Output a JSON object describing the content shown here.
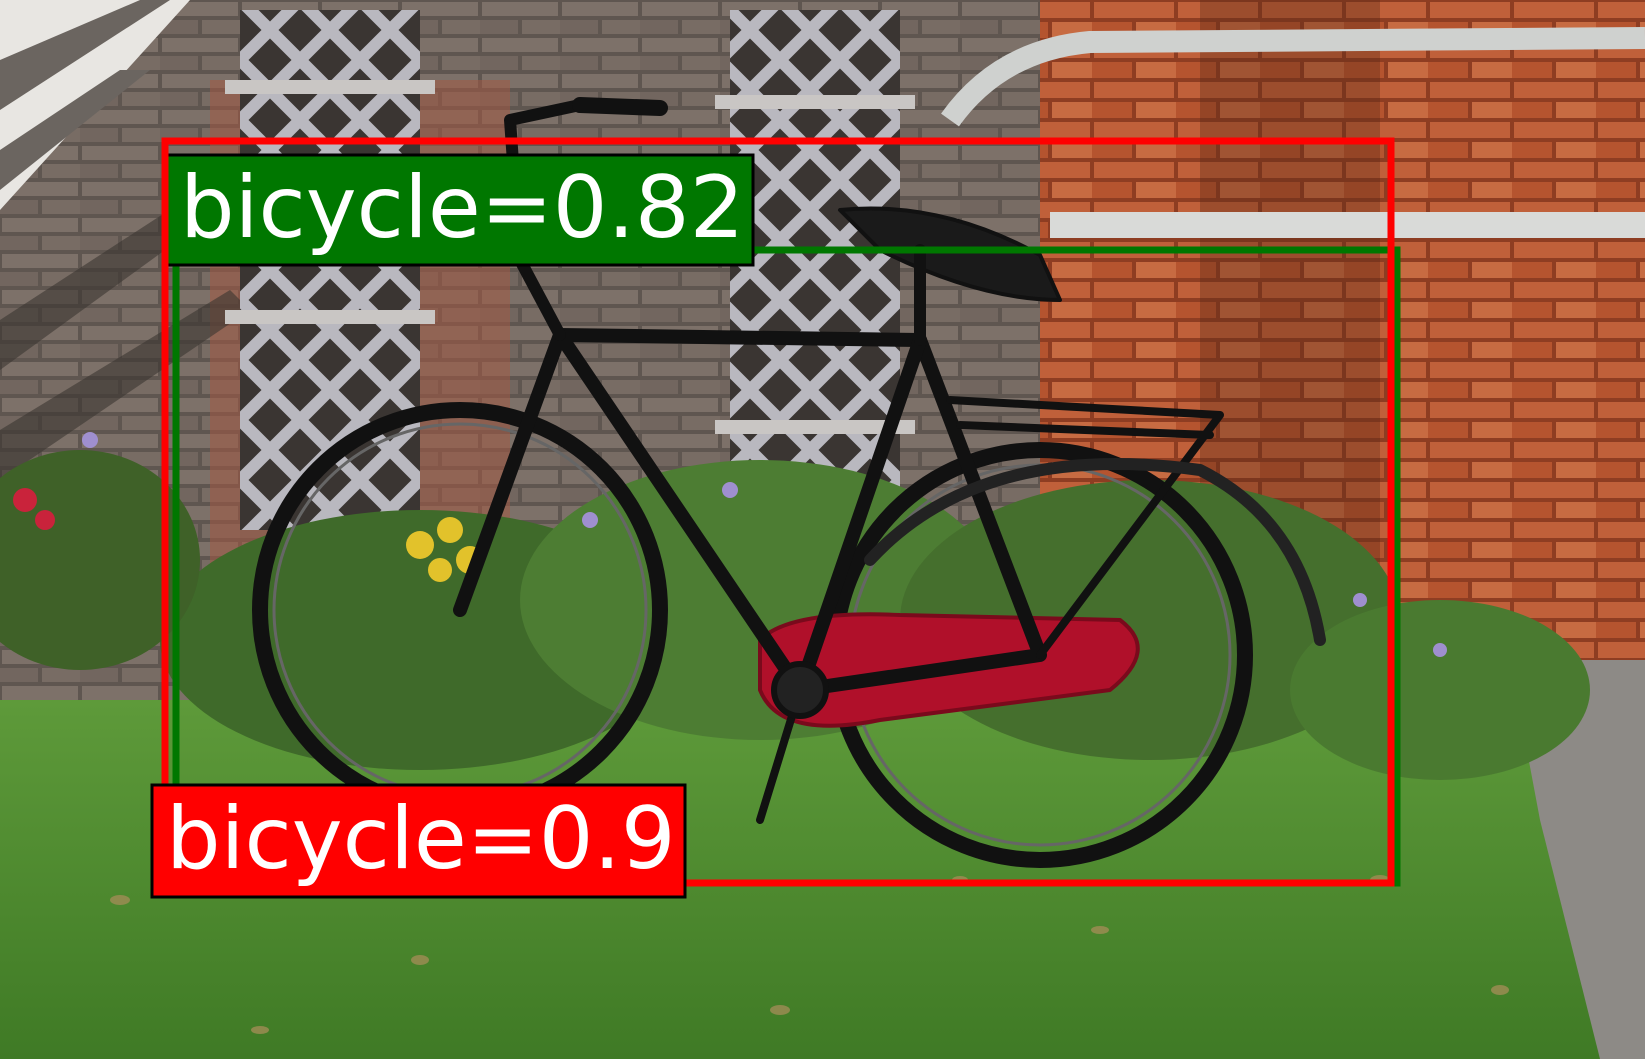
{
  "detections": [
    {
      "class": "bicycle",
      "score": "0.82",
      "label": "bicycle=0.82",
      "color": "#007700"
    },
    {
      "class": "bicycle",
      "score": "0.9",
      "label": "bicycle=0.9",
      "color": "#ff0000"
    }
  ],
  "colors": {
    "grass": "#4f8a2c",
    "brick": "#b5502e",
    "frame": "#111111",
    "chain_guard": "#b0102a"
  }
}
